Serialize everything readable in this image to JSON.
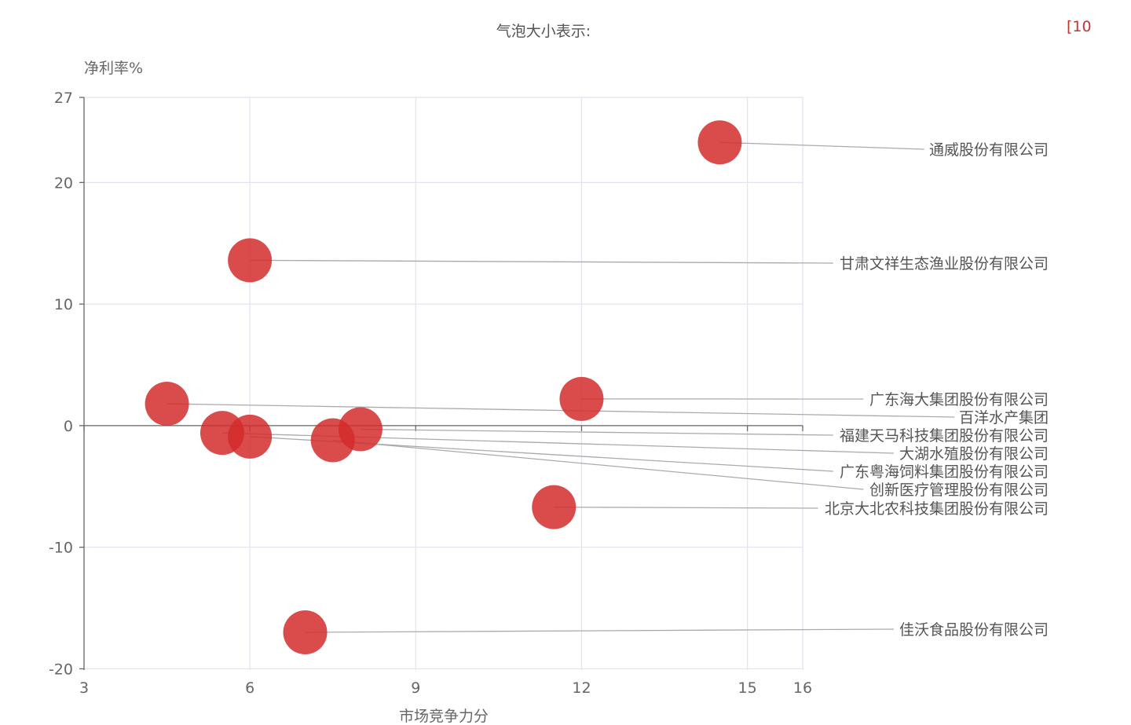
{
  "chart_data": {
    "type": "scatter",
    "legend_title": "气泡大小表示:",
    "legend_range": "[10",
    "xlabel": "市场竞争力分",
    "ylabel": "净利率%",
    "xlim": [
      3,
      16
    ],
    "ylim": [
      -20.1,
      27
    ],
    "x_ticks": [
      3,
      6,
      9,
      12,
      15,
      16
    ],
    "y_ticks": [
      27,
      20,
      10,
      0,
      -10,
      -20
    ],
    "grid": true,
    "colors": {
      "bubble": "#d42b2b",
      "grid": "#e1e3ee",
      "axis": "#666666",
      "leader": "#aaaaaa",
      "legend_range": "#c23531"
    },
    "points": [
      {
        "name": "通威股份有限公司",
        "x": 14.5,
        "y": 23.3
      },
      {
        "name": "甘肃文祥生态渔业股份有限公司",
        "x": 6.0,
        "y": 13.6
      },
      {
        "name": "广东海大集团股份有限公司",
        "x": 12.0,
        "y": 2.2
      },
      {
        "name": "百洋水产集团",
        "x": 4.5,
        "y": 1.8
      },
      {
        "name": "福建天马科技集团股份有限公司",
        "x": 8.0,
        "y": -0.3
      },
      {
        "name": "大湖水殖股份有限公司",
        "x": 5.5,
        "y": -0.6
      },
      {
        "name": "创新医疗管理股份有限公司",
        "x": 7.5,
        "y": -1.2
      },
      {
        "name": "广东粤海饲料集团股份有限公司",
        "x": 6.0,
        "y": -0.9
      },
      {
        "name": "北京大北农科技集团股份有限公司",
        "x": 11.5,
        "y": -6.7
      },
      {
        "name": "佳沃食品股份有限公司",
        "x": 7.0,
        "y": -17.0
      }
    ]
  }
}
